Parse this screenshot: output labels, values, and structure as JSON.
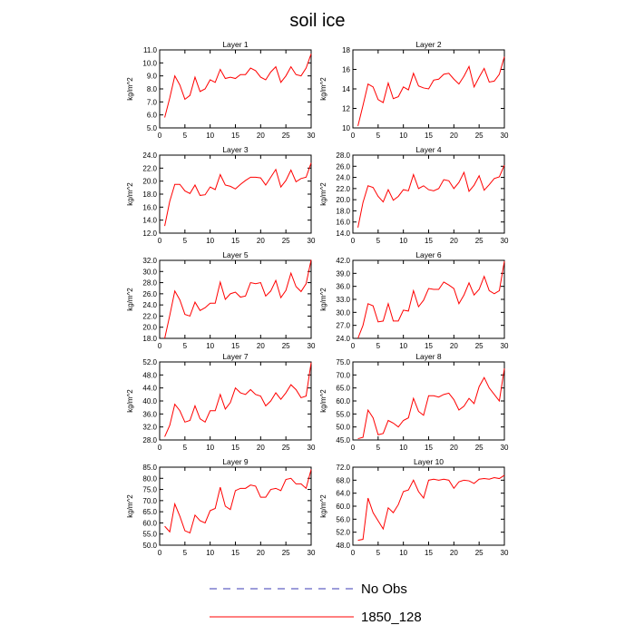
{
  "title": "soil ice",
  "colors": {
    "series": "#ff0000",
    "no_obs": "#3b3bb5",
    "axis": "#000000"
  },
  "legend": [
    {
      "label": "No Obs",
      "style": "dashed",
      "color": "#3b3bb5"
    },
    {
      "label": "1850_128",
      "style": "solid",
      "color": "#ff0000"
    }
  ],
  "chart_data": [
    {
      "type": "line",
      "title": "Layer 1",
      "ylabel": "kg/m^2",
      "xlim": [
        0,
        30
      ],
      "ylim": [
        5.0,
        11.0
      ],
      "xticks": [
        0,
        5,
        10,
        15,
        20,
        25,
        30
      ],
      "yticks": [
        "5.0",
        "6.0",
        "7.0",
        "8.0",
        "9.0",
        "10.0",
        "11.0"
      ],
      "series": [
        {
          "name": "1850_128",
          "x": [
            1,
            2,
            3,
            4,
            5,
            6,
            7,
            8,
            9,
            10,
            11,
            12,
            13,
            14,
            15,
            16,
            17,
            18,
            19,
            20,
            21,
            22,
            23,
            24,
            25,
            26,
            27,
            28,
            29,
            30
          ],
          "values": [
            5.8,
            7.3,
            9.0,
            8.3,
            7.2,
            7.5,
            8.9,
            7.8,
            8.0,
            8.7,
            8.5,
            9.5,
            8.8,
            8.9,
            8.8,
            9.1,
            9.1,
            9.6,
            9.4,
            8.9,
            8.7,
            9.3,
            9.7,
            8.5,
            9.0,
            9.7,
            9.1,
            9.0,
            9.6,
            10.7
          ]
        }
      ]
    },
    {
      "type": "line",
      "title": "Layer 2",
      "ylabel": "kg/m^2",
      "xlim": [
        0,
        30
      ],
      "ylim": [
        10,
        18
      ],
      "xticks": [
        0,
        5,
        10,
        15,
        20,
        25,
        30
      ],
      "yticks": [
        "10",
        "12",
        "14",
        "16",
        "18"
      ],
      "series": [
        {
          "name": "1850_128",
          "x": [
            1,
            2,
            3,
            4,
            5,
            6,
            7,
            8,
            9,
            10,
            11,
            12,
            13,
            14,
            15,
            16,
            17,
            18,
            19,
            20,
            21,
            22,
            23,
            24,
            25,
            26,
            27,
            28,
            29,
            30
          ],
          "values": [
            10.2,
            12.3,
            14.5,
            14.2,
            12.9,
            12.6,
            14.6,
            13.0,
            13.2,
            14.2,
            13.9,
            15.6,
            14.3,
            14.1,
            14.0,
            14.9,
            15.0,
            15.5,
            15.6,
            15.0,
            14.5,
            15.3,
            16.3,
            14.2,
            15.2,
            16.1,
            14.7,
            14.8,
            15.5,
            17.3
          ]
        }
      ]
    },
    {
      "type": "line",
      "title": "Layer 3",
      "ylabel": "kg/m^2",
      "xlim": [
        0,
        30
      ],
      "ylim": [
        12.0,
        24.0
      ],
      "xticks": [
        0,
        5,
        10,
        15,
        20,
        25,
        30
      ],
      "yticks": [
        "12.0",
        "14.0",
        "16.0",
        "18.0",
        "20.0",
        "22.0",
        "24.0"
      ],
      "series": [
        {
          "name": "1850_128",
          "x": [
            1,
            2,
            3,
            4,
            5,
            6,
            7,
            8,
            9,
            10,
            11,
            12,
            13,
            14,
            15,
            16,
            17,
            18,
            19,
            20,
            21,
            22,
            23,
            24,
            25,
            26,
            27,
            28,
            29,
            30
          ],
          "values": [
            13.1,
            16.9,
            19.5,
            19.5,
            18.5,
            18.1,
            19.4,
            17.8,
            17.9,
            19.1,
            18.7,
            21.0,
            19.4,
            19.2,
            18.8,
            19.5,
            20.1,
            20.6,
            20.6,
            20.5,
            19.4,
            20.6,
            21.8,
            19.1,
            20.1,
            21.7,
            19.9,
            20.4,
            20.6,
            22.8
          ]
        }
      ]
    },
    {
      "type": "line",
      "title": "Layer 4",
      "ylabel": "kg/m^2",
      "xlim": [
        0,
        30
      ],
      "ylim": [
        14.0,
        28.0
      ],
      "xticks": [
        0,
        5,
        10,
        15,
        20,
        25,
        30
      ],
      "yticks": [
        "14.0",
        "16.0",
        "18.0",
        "20.0",
        "22.0",
        "24.0",
        "26.0",
        "28.0"
      ],
      "series": [
        {
          "name": "1850_128",
          "x": [
            1,
            2,
            3,
            4,
            5,
            6,
            7,
            8,
            9,
            10,
            11,
            12,
            13,
            14,
            15,
            16,
            17,
            18,
            19,
            20,
            21,
            22,
            23,
            24,
            25,
            26,
            27,
            28,
            29,
            30
          ],
          "values": [
            15.0,
            19.5,
            22.5,
            22.2,
            20.6,
            19.6,
            21.8,
            19.9,
            20.6,
            21.8,
            21.6,
            24.5,
            22.0,
            22.5,
            21.8,
            21.6,
            22.0,
            23.6,
            23.4,
            22.0,
            23.1,
            24.9,
            21.5,
            22.6,
            24.3,
            21.7,
            22.7,
            23.8,
            24.1,
            26.2
          ]
        }
      ]
    },
    {
      "type": "line",
      "title": "Layer 5",
      "ylabel": "kg/m^2",
      "xlim": [
        0,
        30
      ],
      "ylim": [
        18.0,
        32.0
      ],
      "xticks": [
        0,
        5,
        10,
        15,
        20,
        25,
        30
      ],
      "yticks": [
        "18.0",
        "20.0",
        "22.0",
        "24.0",
        "26.0",
        "28.0",
        "30.0",
        "32.0"
      ],
      "series": [
        {
          "name": "1850_128",
          "x": [
            1,
            2,
            3,
            4,
            5,
            6,
            7,
            8,
            9,
            10,
            11,
            12,
            13,
            14,
            15,
            16,
            17,
            18,
            19,
            20,
            21,
            22,
            23,
            24,
            25,
            26,
            27,
            28,
            29,
            30
          ],
          "values": [
            18.0,
            22.1,
            26.5,
            24.9,
            22.3,
            22.0,
            24.5,
            23.0,
            23.5,
            24.3,
            24.3,
            28.1,
            25.0,
            26.0,
            26.3,
            25.4,
            25.6,
            28.0,
            27.8,
            28.0,
            25.6,
            26.5,
            28.4,
            25.3,
            26.6,
            29.7,
            27.3,
            26.4,
            27.8,
            32.1
          ]
        }
      ]
    },
    {
      "type": "line",
      "title": "Layer 6",
      "ylabel": "kg/m^2",
      "xlim": [
        0,
        30
      ],
      "ylim": [
        24.0,
        42.0
      ],
      "xticks": [
        0,
        5,
        10,
        15,
        20,
        25,
        30
      ],
      "yticks": [
        "24.0",
        "27.0",
        "30.0",
        "33.0",
        "36.0",
        "39.0",
        "42.0"
      ],
      "series": [
        {
          "name": "1850_128",
          "x": [
            1,
            2,
            3,
            4,
            5,
            6,
            7,
            8,
            9,
            10,
            11,
            12,
            13,
            14,
            15,
            16,
            17,
            18,
            19,
            20,
            21,
            22,
            23,
            24,
            25,
            26,
            27,
            28,
            29,
            30
          ],
          "values": [
            24.0,
            27.0,
            32.0,
            31.5,
            27.8,
            28.0,
            32.0,
            28.0,
            28.0,
            30.5,
            30.3,
            35.0,
            31.3,
            32.8,
            35.5,
            35.3,
            35.3,
            37.0,
            36.3,
            35.5,
            32.0,
            34.0,
            36.8,
            34.0,
            35.3,
            38.3,
            35.0,
            34.3,
            35.0,
            41.8
          ]
        }
      ]
    },
    {
      "type": "line",
      "title": "Layer 7",
      "ylabel": "kg/m^2",
      "xlim": [
        0,
        30
      ],
      "ylim": [
        28.0,
        52.0
      ],
      "xticks": [
        0,
        5,
        10,
        15,
        20,
        25,
        30
      ],
      "yticks": [
        "28.0",
        "32.0",
        "36.0",
        "40.0",
        "44.0",
        "48.0",
        "52.0"
      ],
      "series": [
        {
          "name": "1850_128",
          "x": [
            1,
            2,
            3,
            4,
            5,
            6,
            7,
            8,
            9,
            10,
            11,
            12,
            13,
            14,
            15,
            16,
            17,
            18,
            19,
            20,
            21,
            22,
            23,
            24,
            25,
            26,
            27,
            28,
            29,
            30
          ],
          "values": [
            29.0,
            32.5,
            39.0,
            37.0,
            33.5,
            34.0,
            38.5,
            34.5,
            33.5,
            37.0,
            37.0,
            42.0,
            37.5,
            39.5,
            44.0,
            42.5,
            42.0,
            43.5,
            42.0,
            41.5,
            38.5,
            40.0,
            42.5,
            40.5,
            42.5,
            45.0,
            43.5,
            41.0,
            41.5,
            51.8
          ]
        }
      ]
    },
    {
      "type": "line",
      "title": "Layer 8",
      "ylabel": "kg/m^2",
      "xlim": [
        0,
        30
      ],
      "ylim": [
        45.0,
        75.0
      ],
      "xticks": [
        0,
        5,
        10,
        15,
        20,
        25,
        30
      ],
      "yticks": [
        "45.0",
        "50.0",
        "55.0",
        "60.0",
        "65.0",
        "70.0",
        "75.0"
      ],
      "series": [
        {
          "name": "1850_128",
          "x": [
            1,
            2,
            3,
            4,
            5,
            6,
            7,
            8,
            9,
            10,
            11,
            12,
            13,
            14,
            15,
            16,
            17,
            18,
            19,
            20,
            21,
            22,
            23,
            24,
            25,
            26,
            27,
            28,
            29,
            30
          ],
          "values": [
            45.5,
            46.0,
            56.5,
            53.5,
            47.0,
            47.5,
            52.5,
            51.5,
            50.0,
            52.5,
            53.5,
            61.0,
            56.0,
            54.5,
            62.0,
            62.0,
            61.5,
            62.5,
            63.0,
            60.5,
            56.5,
            58.0,
            61.0,
            59.0,
            65.5,
            69.0,
            65.0,
            62.5,
            60.0,
            72.5
          ]
        }
      ]
    },
    {
      "type": "line",
      "title": "Layer 9",
      "ylabel": "kg/m^2",
      "xlim": [
        0,
        30
      ],
      "ylim": [
        50.0,
        85.0
      ],
      "xticks": [
        0,
        5,
        10,
        15,
        20,
        25,
        30
      ],
      "yticks": [
        "50.0",
        "55.0",
        "60.0",
        "65.0",
        "70.0",
        "75.0",
        "80.0",
        "85.0"
      ],
      "series": [
        {
          "name": "1850_128",
          "x": [
            1,
            2,
            3,
            4,
            5,
            6,
            7,
            8,
            9,
            10,
            11,
            12,
            13,
            14,
            15,
            16,
            17,
            18,
            19,
            20,
            21,
            22,
            23,
            24,
            25,
            26,
            27,
            28,
            29,
            30
          ],
          "values": [
            58.5,
            56.0,
            68.5,
            63.0,
            56.5,
            55.5,
            63.5,
            61.0,
            60.0,
            65.5,
            66.5,
            76.0,
            67.5,
            66.0,
            74.5,
            75.5,
            75.5,
            77.0,
            76.5,
            71.5,
            71.5,
            75.0,
            75.5,
            74.5,
            79.5,
            80.0,
            77.5,
            77.5,
            75.5,
            84.0
          ]
        }
      ]
    },
    {
      "type": "line",
      "title": "Layer 10",
      "ylabel": "kg/m^2",
      "xlim": [
        0,
        30
      ],
      "ylim": [
        48.0,
        72.0
      ],
      "xticks": [
        0,
        5,
        10,
        15,
        20,
        25,
        30
      ],
      "yticks": [
        "48.0",
        "52.0",
        "56.0",
        "60.0",
        "64.0",
        "68.0",
        "72.0"
      ],
      "series": [
        {
          "name": "1850_128",
          "x": [
            1,
            2,
            3,
            4,
            5,
            6,
            7,
            8,
            9,
            10,
            11,
            12,
            13,
            14,
            15,
            16,
            17,
            18,
            19,
            20,
            21,
            22,
            23,
            24,
            25,
            26,
            27,
            28,
            29,
            30
          ],
          "values": [
            49.5,
            49.8,
            62.5,
            58.0,
            55.5,
            53.0,
            59.5,
            58.0,
            60.5,
            64.5,
            65.0,
            68.0,
            64.5,
            62.5,
            68.0,
            68.3,
            68.0,
            68.3,
            68.0,
            65.5,
            67.5,
            68.0,
            67.8,
            67.0,
            68.3,
            68.5,
            68.3,
            68.8,
            68.5,
            69.5
          ]
        }
      ]
    }
  ]
}
